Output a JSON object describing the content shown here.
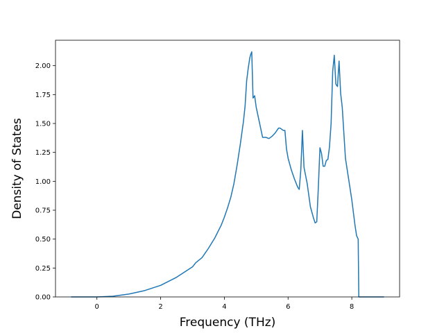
{
  "chart_data": {
    "type": "line",
    "title": "",
    "xlabel": "Frequency (THz)",
    "ylabel": "Density of States",
    "xlim": [
      -1.3,
      9.5
    ],
    "ylim": [
      0.0,
      2.22
    ],
    "grid": false,
    "xticks": [
      0,
      2,
      4,
      6,
      8
    ],
    "xtick_labels": [
      "0",
      "2",
      "4",
      "6",
      "8"
    ],
    "yticks": [
      0.0,
      0.25,
      0.5,
      0.75,
      1.0,
      1.25,
      1.5,
      1.75,
      2.0
    ],
    "ytick_labels": [
      "0.00",
      "0.25",
      "0.50",
      "0.75",
      "1.00",
      "1.25",
      "1.50",
      "1.75",
      "2.00"
    ],
    "series": [
      {
        "color": "#1f77b4",
        "x": [
          -0.8,
          0.0,
          0.2,
          0.5,
          1.0,
          1.5,
          2.0,
          2.5,
          3.0,
          3.1,
          3.3,
          3.5,
          3.7,
          3.9,
          4.0,
          4.1,
          4.2,
          4.3,
          4.4,
          4.5,
          4.55,
          4.6,
          4.65,
          4.7,
          4.75,
          4.8,
          4.83,
          4.86,
          4.9,
          4.95,
          5.0,
          5.1,
          5.2,
          5.3,
          5.4,
          5.5,
          5.6,
          5.7,
          5.75,
          5.85,
          5.9,
          5.95,
          6.0,
          6.1,
          6.2,
          6.3,
          6.35,
          6.4,
          6.45,
          6.5,
          6.6,
          6.7,
          6.8,
          6.85,
          6.9,
          6.95,
          7.0,
          7.05,
          7.1,
          7.15,
          7.2,
          7.25,
          7.3,
          7.35,
          7.4,
          7.45,
          7.5,
          7.55,
          7.6,
          7.65,
          7.7,
          7.8,
          7.9,
          8.0,
          8.1,
          8.15,
          8.2,
          8.22,
          8.5,
          9.0
        ],
        "y": [
          0.0,
          0.0,
          0.002,
          0.006,
          0.025,
          0.055,
          0.1,
          0.17,
          0.26,
          0.295,
          0.34,
          0.42,
          0.51,
          0.62,
          0.69,
          0.77,
          0.86,
          0.98,
          1.14,
          1.32,
          1.42,
          1.52,
          1.65,
          1.87,
          1.98,
          2.07,
          2.1,
          2.12,
          1.72,
          1.74,
          1.64,
          1.51,
          1.38,
          1.38,
          1.37,
          1.39,
          1.42,
          1.46,
          1.46,
          1.44,
          1.44,
          1.28,
          1.2,
          1.1,
          1.02,
          0.95,
          0.93,
          1.1,
          1.44,
          1.12,
          0.98,
          0.78,
          0.68,
          0.64,
          0.65,
          0.95,
          1.29,
          1.24,
          1.13,
          1.13,
          1.18,
          1.19,
          1.3,
          1.5,
          1.95,
          2.09,
          1.84,
          1.82,
          2.04,
          1.76,
          1.64,
          1.2,
          1.02,
          0.84,
          0.62,
          0.53,
          0.5,
          0.0,
          0.0,
          0.0
        ]
      }
    ]
  }
}
